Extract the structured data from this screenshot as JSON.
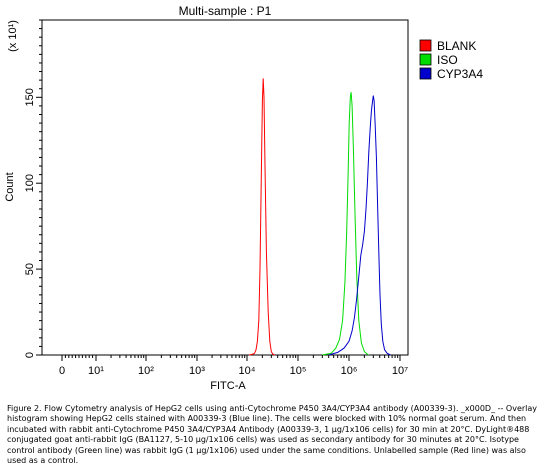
{
  "chart_data": {
    "type": "line",
    "title": "Multi-sample : P1",
    "xlabel": "FITC-A",
    "ylabel": "Count",
    "y_multiplier_label": "(x 10¹)",
    "x_scale": "log",
    "xlim": [
      0,
      10000000
    ],
    "ylim": [
      0,
      195
    ],
    "x_ticks": [
      {
        "value": 0,
        "label": "0"
      },
      {
        "value": 10,
        "label": "10¹"
      },
      {
        "value": 100,
        "label": "10²"
      },
      {
        "value": 1000,
        "label": "10³"
      },
      {
        "value": 10000,
        "label": "10⁴"
      },
      {
        "value": 100000,
        "label": "10⁵"
      },
      {
        "value": 1000000,
        "label": "10⁶"
      },
      {
        "value": 10000000,
        "label": "10⁷"
      }
    ],
    "y_ticks": [
      {
        "value": 0,
        "label": "0"
      },
      {
        "value": 50,
        "label": "50"
      },
      {
        "value": 100,
        "label": "100"
      },
      {
        "value": 150,
        "label": "150"
      }
    ],
    "legend_position": "top-right",
    "series": [
      {
        "name": "BLANK",
        "color": "#ff0000",
        "points": [
          [
            11000,
            0
          ],
          [
            13000,
            0.5
          ],
          [
            14000,
            1
          ],
          [
            15000,
            3
          ],
          [
            16000,
            8
          ],
          [
            17000,
            20
          ],
          [
            18000,
            50
          ],
          [
            19000,
            100
          ],
          [
            20000,
            148
          ],
          [
            20800,
            161
          ],
          [
            21500,
            150
          ],
          [
            22500,
            110
          ],
          [
            24000,
            60
          ],
          [
            26000,
            25
          ],
          [
            28000,
            8
          ],
          [
            30000,
            2
          ],
          [
            32000,
            0.5
          ],
          [
            35000,
            0
          ]
        ]
      },
      {
        "name": "ISO",
        "color": "#00dd00",
        "points": [
          [
            300000,
            0
          ],
          [
            450000,
            1
          ],
          [
            550000,
            4
          ],
          [
            650000,
            9
          ],
          [
            750000,
            20
          ],
          [
            830000,
            42
          ],
          [
            900000,
            72
          ],
          [
            960000,
            105
          ],
          [
            1010000,
            135
          ],
          [
            1060000,
            150
          ],
          [
            1100000,
            153
          ],
          [
            1150000,
            145
          ],
          [
            1220000,
            120
          ],
          [
            1320000,
            80
          ],
          [
            1420000,
            45
          ],
          [
            1560000,
            20
          ],
          [
            1750000,
            7
          ],
          [
            2000000,
            2
          ],
          [
            2400000,
            0
          ]
        ]
      },
      {
        "name": "CYP3A4",
        "color": "#0000cc",
        "points": [
          [
            400000,
            0
          ],
          [
            600000,
            1.5
          ],
          [
            800000,
            4
          ],
          [
            1000000,
            8
          ],
          [
            1150000,
            14
          ],
          [
            1280000,
            22
          ],
          [
            1400000,
            32
          ],
          [
            1550000,
            45
          ],
          [
            1700000,
            58
          ],
          [
            1850000,
            64
          ],
          [
            2000000,
            72
          ],
          [
            2150000,
            85
          ],
          [
            2300000,
            100
          ],
          [
            2450000,
            118
          ],
          [
            2600000,
            132
          ],
          [
            2750000,
            142
          ],
          [
            2900000,
            148
          ],
          [
            3000000,
            151
          ],
          [
            3100000,
            148
          ],
          [
            3250000,
            135
          ],
          [
            3450000,
            115
          ],
          [
            3650000,
            85
          ],
          [
            3850000,
            58
          ],
          [
            4050000,
            35
          ],
          [
            4300000,
            18
          ],
          [
            4600000,
            8
          ],
          [
            5000000,
            3
          ],
          [
            5600000,
            1
          ],
          [
            6500000,
            0
          ]
        ]
      }
    ]
  },
  "caption": "Figure 2. Flow Cytometry analysis of HepG2 cells using anti-Cytochrome P450 3A4/CYP3A4 antibody (A00339-3). _x000D_ -- Overlay histogram showing HepG2 cells stained with A00339-3 (Blue line). The cells were blocked with 10% normal goat serum. And then incubated with rabbit anti-Cytochrome P450 3A4/CYP3A4 Antibody (A00339-3, 1 μg/1x106 cells) for 30 min at 20°C. DyLight®488 conjugated goat anti-rabbit IgG (BA1127, 5-10 μg/1x106 cells) was used as secondary antibody for 30 minutes at 20°C. Isotype control antibody (Green line) was rabbit IgG (1 μg/1x106) used under the same conditions. Unlabelled sample (Red line) was also used as a control."
}
